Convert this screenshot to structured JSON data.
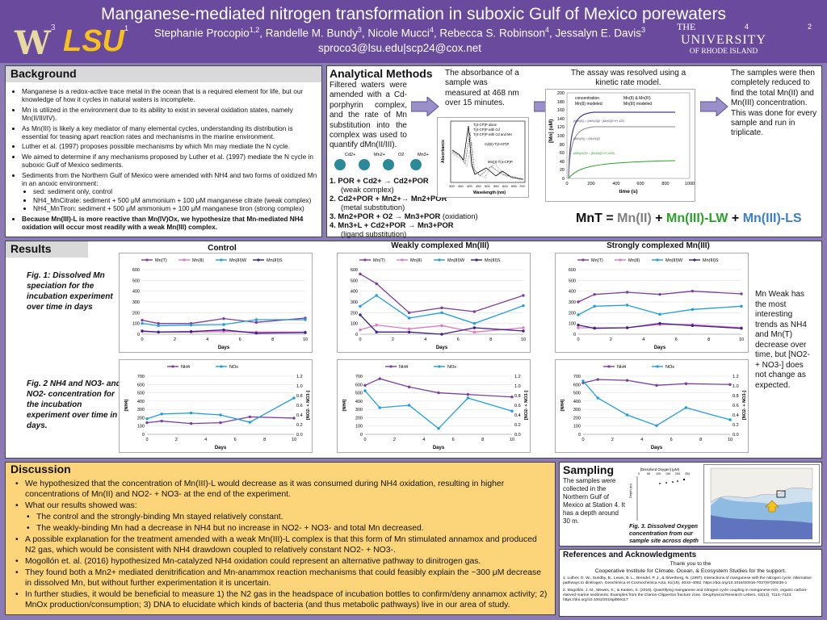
{
  "header": {
    "title": "Manganese-mediated nitrogen transformation in suboxic Gulf of Mexico porewaters",
    "authors": "Stephanie Procopio1,2, Randelle M. Bundy3, Nicole Mucci4, Rebecca S. Robinson4, Jessalyn E. Davis3",
    "authors_parts": [
      "Stephanie Procopio",
      "1,2",
      ", Randelle M. Bundy",
      "3",
      ", Nicole Mucci",
      "4",
      ", Rebecca S. Robinson",
      "4",
      ", Jessalyn E. Davis",
      "3"
    ],
    "email": "sproco3@lsu.edu|scp24@cox.net",
    "logo_w": "W",
    "logo_w_sup": "3",
    "logo_lsu": "LSU",
    "logo_lsu_sup": "1",
    "uri_the": "THE",
    "uri_name": "UNIVERSITY",
    "uri_sub": "OF RHODE ISLAND",
    "uri_sup": "4",
    "corner_sup": "2"
  },
  "background": {
    "title": "Background",
    "bullets": [
      "Manganese is a redox-active trace metal in the ocean that is a required element for life, but our knowledge of how it cycles in natural waters is incomplete.",
      "Mn is utilized in the environment due to its ability to exist in several oxidation states, namely Mn(II/III/IV).",
      "As Mn(III) is likely a key mediator of many elemental cycles, understanding its distribution is essential for teasing apart reaction rates and mechanisms in the marine environment.",
      "Luther et al. (1997) proposes possible mechanisms by which Mn may mediate the N cycle.",
      "We aimed to determine if any mechanisms proposed by Luther et al. (1997) mediate the N cycle in suboxic Gulf of Mexico sediments.",
      "Sediments from the Northern Gulf of Mexico were amended with NH4 and two forms of oxidized Mn in an anoxic environment:"
    ],
    "sub_bullets": [
      "sed: sediment only, control",
      "NH4_MnCitrate: sediment + 500 μM ammonium + 100 μM manganese citrate (weak complex)",
      "NH4_MnTiron: sediment + 500 μM ammonium + 100 μM manganese tiron (strong complex)"
    ],
    "hypothesis": "Because Mn(III)-L is more reactive than Mn(IV)Ox, we hypothesize that Mn-mediated NH4 oxidation will occur most readily with a weak Mn(III) complex."
  },
  "methods": {
    "title": "Analytical Methods",
    "intro": "Filtered waters were amended with a Cd-porphyrin complex, and the rate of Mn substitution into the complex was used to quantify dMn(II/III).",
    "absorbance_text": "The absorbance of a sample was measured at 468 nm over 15 minutes.",
    "kinetic_text": "The assay was resolved using a kinetic rate model.",
    "reduced_text": "The samples were then completely reduced to find the total Mn(II) and Mn(III) concentration. This was done for every sample and run in triplicate.",
    "steps": [
      {
        "rxn": "1. POR + Cd2+ → Cd2+POR",
        "note": "(weak complex)"
      },
      {
        "rxn": "2. Cd2+POR + Mn2+→ Mn2+POR",
        "note": "(metal substitution)"
      },
      {
        "rxn": "3. Mn2+POR + O2 → Mn3+POR",
        "note": "(oxidation)"
      },
      {
        "rxn": "4. Mn3+L + Cd2+POR → Mn3+POR",
        "note": "(ligand substitution)"
      }
    ],
    "eq_prefix": "MnT =",
    "eq_mn2": "Mn(II)",
    "eq_plus": "+",
    "eq_mn3w": "Mn(III)-LW",
    "eq_mn3s": "Mn(III)-LS",
    "eq_colors": {
      "mn2": "#7f7f7f",
      "mn3w": "#2ca02c",
      "mn3s": "#3b7ec9"
    },
    "spectrum_legend": [
      "T(4-CP)P alone",
      "T(4-CP)P with Cd",
      "T(4-CP)P with Cd and Mn"
    ],
    "spectrum_labels": [
      "Cd(II)-T(4-CP)P",
      "Mn(II)-T(4-CP)P"
    ],
    "spectrum_axis": {
      "x": "Wavelength (nm)",
      "y": "Absorbance",
      "xticks": [
        "300",
        "350",
        "400",
        "450",
        "500",
        "550",
        "600",
        "650",
        "700"
      ]
    },
    "kinetic_legend": [
      "concentration",
      "Mn(II) & Mn(III)",
      "Mn(II) modeled",
      "Mn(III) modeled"
    ],
    "kinetic_axis": {
      "x": "time (s)",
      "y": "[Mn] (uM)",
      "xticks": [
        "0",
        "200",
        "400",
        "600",
        "800",
        "1000"
      ],
      "yticks": [
        "0",
        "20",
        "40",
        "60",
        "80",
        "100",
        "120",
        "140",
        "160",
        "180",
        "200"
      ]
    },
    "kinetic_eqs": [
      "[dMn(II)] = [dMn(II)]0 · [Mn(II)]0·e^(-k2t)",
      "[dMn(III)] = [Mn(III)]0",
      "[dMn(III)]W = [Mn(III)]0·e^(-kWt)"
    ]
  },
  "results": {
    "title": "Results",
    "fig1_caption": "Fig. 1: Dissolved Mn speciation for the incubation experiment over time in days",
    "fig2_caption": "Fig. 2 NH4 and NO3- and NO2- concentration for the incubation experiment over time in days.",
    "col_titles": [
      "Control",
      "Weakly complexed Mn(III)",
      "Strongly complexed Mn(III)"
    ],
    "side_note": "Mn Weak has the most interesting trends as NH4 and Mn(T) decrease over time, but [NO2- + NO3-] does not change as expected."
  },
  "chart_data": [
    {
      "type": "line",
      "title": "Control",
      "xlabel": "Days",
      "ylabel": "",
      "xlim": [
        0,
        10
      ],
      "ylim": [
        0,
        600
      ],
      "x": [
        0,
        1,
        3,
        5,
        7,
        10
      ],
      "series": [
        {
          "name": "Mn(T)",
          "color": "#7b3f9e",
          "values": [
            130,
            100,
            100,
            145,
            110,
            150
          ]
        },
        {
          "name": "Mn(II)",
          "color": "#e377c2",
          "values": [
            25,
            20,
            20,
            25,
            20,
            20
          ]
        },
        {
          "name": "Mn(III)W",
          "color": "#1f9ede",
          "values": [
            100,
            80,
            85,
            90,
            135,
            135
          ]
        },
        {
          "name": "Mn(III)S",
          "color": "#3b1f8a",
          "values": [
            30,
            20,
            25,
            40,
            10,
            15
          ]
        }
      ]
    },
    {
      "type": "line",
      "title": "Weakly complexed Mn(III)",
      "xlabel": "Days",
      "ylabel": "",
      "xlim": [
        0,
        10
      ],
      "ylim": [
        0,
        600
      ],
      "x": [
        0,
        1,
        3,
        5,
        7,
        10
      ],
      "series": [
        {
          "name": "Mn(T)",
          "color": "#7b3f9e",
          "values": [
            560,
            470,
            200,
            245,
            210,
            360
          ]
        },
        {
          "name": "Mn(II)",
          "color": "#e377c2",
          "values": [
            40,
            85,
            50,
            80,
            20,
            60
          ]
        },
        {
          "name": "Mn(III)W",
          "color": "#1f9ede",
          "values": [
            260,
            360,
            150,
            200,
            100,
            265
          ]
        },
        {
          "name": "Mn(III)S",
          "color": "#3b1f8a",
          "values": [
            180,
            20,
            20,
            0,
            60,
            30
          ]
        }
      ]
    },
    {
      "type": "line",
      "title": "Strongly complexed Mn(III)",
      "xlabel": "Days",
      "ylabel": "",
      "xlim": [
        0,
        10
      ],
      "ylim": [
        0,
        600
      ],
      "x": [
        0,
        1,
        3,
        5,
        7,
        10
      ],
      "series": [
        {
          "name": "Mn(T)",
          "color": "#7b3f9e",
          "values": [
            300,
            370,
            390,
            370,
            400,
            375
          ]
        },
        {
          "name": "Mn(II)",
          "color": "#e377c2",
          "values": [
            60,
            60,
            60,
            90,
            90,
            60
          ]
        },
        {
          "name": "Mn(III)W",
          "color": "#1f9ede",
          "values": [
            180,
            260,
            270,
            185,
            230,
            260
          ]
        },
        {
          "name": "Mn(III)S",
          "color": "#3b1f8a",
          "values": [
            85,
            55,
            60,
            100,
            80,
            55
          ]
        }
      ]
    },
    {
      "type": "line",
      "title": "",
      "xlabel": "Days",
      "ylabel": "[NH4]",
      "y2label": "[NO2- + NO3-]",
      "xlim": [
        0,
        10
      ],
      "ylim": [
        0,
        700
      ],
      "y2lim": [
        0,
        1.2
      ],
      "x": [
        0,
        1,
        3,
        5,
        7,
        10
      ],
      "series": [
        {
          "name": "NH4",
          "color": "#7b3f9e",
          "axis": "left",
          "values": [
            140,
            160,
            130,
            140,
            210,
            195
          ]
        },
        {
          "name": "NOx",
          "color": "#1f9ede",
          "axis": "right",
          "values": [
            0.32,
            0.42,
            0.44,
            0.4,
            0.25,
            0.75
          ]
        }
      ]
    },
    {
      "type": "line",
      "title": "",
      "xlabel": "Days",
      "ylabel": "[NH4]",
      "y2label": "[NO2- + NO3-]",
      "xlim": [
        0,
        10
      ],
      "ylim": [
        0,
        700
      ],
      "y2lim": [
        0,
        1.2
      ],
      "x": [
        0,
        1,
        3,
        5,
        7,
        10
      ],
      "series": [
        {
          "name": "NH4",
          "color": "#7b3f9e",
          "axis": "left",
          "values": [
            590,
            670,
            570,
            500,
            480,
            450
          ]
        },
        {
          "name": "NOx",
          "color": "#1f9ede",
          "axis": "right",
          "values": [
            0.9,
            0.55,
            0.6,
            0.12,
            0.75,
            0.48
          ]
        }
      ]
    },
    {
      "type": "line",
      "title": "",
      "xlabel": "Days",
      "ylabel": "[NH4]",
      "y2label": "[NO2- + NO3-]",
      "xlim": [
        0,
        10
      ],
      "ylim": [
        0,
        700
      ],
      "y2lim": [
        0,
        1.2
      ],
      "x": [
        0,
        1,
        3,
        5,
        7,
        10
      ],
      "series": [
        {
          "name": "NH4",
          "color": "#7b3f9e",
          "axis": "left",
          "values": [
            620,
            660,
            650,
            590,
            610,
            600
          ]
        },
        {
          "name": "NOx",
          "color": "#1f9ede",
          "axis": "right",
          "values": [
            1.1,
            0.75,
            0.4,
            0.18,
            0.55,
            0.3
          ]
        }
      ]
    }
  ],
  "discussion": {
    "title": "Discussion",
    "items": [
      {
        "level": 1,
        "text": "We hypothesized that the concentration of Mn(III)-L would decrease as it was consumed during NH4 oxidation, resulting in higher concentrations of Mn(II) and NO2- + NO3- at the end of the experiment."
      },
      {
        "level": 1,
        "text": "What our results showed was:"
      },
      {
        "level": 2,
        "text": "The control and the strongly-binding Mn stayed relatively constant."
      },
      {
        "level": 2,
        "text": "The weakly-binding Mn had a decrease in NH4 but no increase in NO2- + NO3- and total Mn decreased."
      },
      {
        "level": 1,
        "text": "A possible explanation for the treatment amended with a weak Mn(III)-L complex is that this form of Mn stimulated annamox and produced N2 gas, which would be consistent with NH4 drawdown coupled to relatively constant NO2- + NO3-."
      },
      {
        "level": 1,
        "text": "Mogollón et. al. (2016) hypothesized Mn-catalyzed NH4 oxidation could represent an alternative pathway to dinitrogen gas."
      },
      {
        "level": 1,
        "text": "They found both a Mn2+ mediated denitrification and Mn-anammox reaction mechanisms that could feasibly explain the ~300 μM decrease in dissolved Mn, but without further experimentation it is uncertain."
      },
      {
        "level": 1,
        "text": "In further studies, it would be beneficial to measure 1) the N2 gas in the headspace of incubation bottles to confirm/deny annamox activity; 2) MnOx production/consumption; 3) DNA to elucidate which kinds of bacteria (and thus metabolic pathways) live in our area of study."
      }
    ]
  },
  "sampling": {
    "title": "Sampling",
    "text": "The samples were collected in the Northern Gulf of Mexico at Station 4. It has a depth around 30 m.",
    "fig3": "Fig. 3. Dissolved Oxygen concentration from our sample site across depth",
    "do_axis_title": "[Dissolved Oxygen] (μM)",
    "do_xticks": [
      "0",
      "50",
      "100",
      "150",
      "200",
      "250"
    ],
    "do_ylabel": "Depth (m)"
  },
  "references": {
    "title": "References and Acknowledgments",
    "thanks1": "Thank you to the",
    "thanks2": "Cooperative Institute for Climate, Ocean, & Ecosystem Studies for the support.",
    "refs": [
      "1. Luther, G. W., Sundby, B., Lewis, B. L., Brendel, P. J., & Silverberg, N. (1997). Interactions of manganese with the nitrogen cycle: Alternative pathways to dinitrogen. Geochimica et Cosmochimica Acta, 61(19), 4043–4052. https://doi.org/10.1016/S0016-7037(97)00239-1",
      "2. Mogollón, J. M., Mewes, K., & Kasten, S. (2016). Quantifying manganese and nitrogen cycle coupling in manganese-rich, organic carbon-starved marine sediments: Examples from the Clarion-Clipperton fracture zone. Geophysical Research Letters, 43(13), 7114–7123. https://doi.org/10.1002/2016gl069117"
    ]
  }
}
